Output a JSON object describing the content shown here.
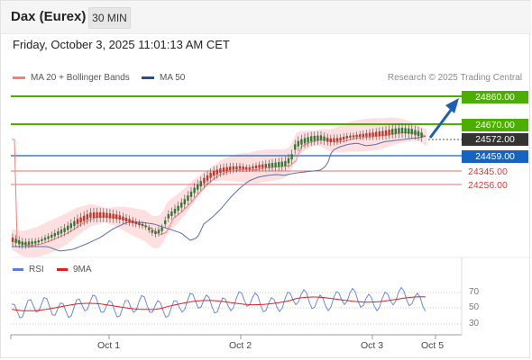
{
  "header": {
    "title": "Dax (Eurex)",
    "timeframe": "30 MIN"
  },
  "datetime": "Friday, October 3, 2025 11:01:13 AM CET",
  "legend": {
    "ma20_label": "MA 20 + Bollinger Bands",
    "ma50_label": "MA 50",
    "credit": "Research © 2025 Trading Central"
  },
  "levels": {
    "target_high": "24860.00",
    "resistance": "24670.00",
    "current": "24572.00",
    "pivot": "24459.00",
    "support1": "24345.00",
    "support2": "24256.00"
  },
  "rsi_legend": {
    "rsi_label": "RSI",
    "ma_label": "9MA"
  },
  "rsi_ticks": [
    "70",
    "50",
    "30"
  ],
  "xaxis": [
    "Oct 1",
    "Oct 2",
    "Oct 3",
    "Oct 5"
  ],
  "colors": {
    "resistance_green": "#4caf00",
    "pivot_blue": "#1565c0",
    "support_red": "#e57373",
    "current_dark": "#333333",
    "arrow_blue": "#1f5fb0",
    "ma20_pink": "#f08080",
    "ma50_blue": "#5a6fa8",
    "band_fill": "#ffd6d6",
    "candle_red": "#c0392b",
    "candle_green": "#2e7d32",
    "rsi_line": "#5b7fd6",
    "rsi_ma": "#e02020"
  }
}
